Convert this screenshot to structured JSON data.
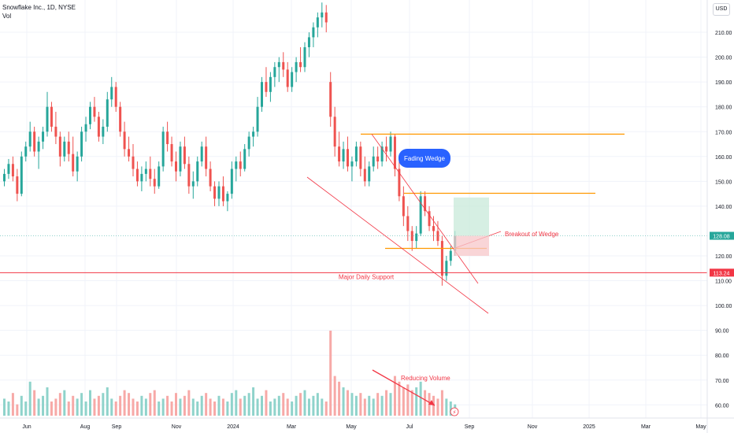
{
  "legend": {
    "symbol_line": "Snowflake Inc., 1D, NYSE",
    "volume_label": "Vol"
  },
  "currency": "USD",
  "chart_data": {
    "type": "candlestick",
    "title": "Snowflake Inc., 1D, NYSE",
    "y_axis": {
      "ticks": [
        60,
        70,
        80,
        90,
        100,
        110,
        120,
        140,
        150,
        160,
        170,
        180,
        190,
        200,
        210
      ],
      "tick_labels": [
        "60.00",
        "70.00",
        "80.00",
        "90.00",
        "100.00",
        "110.00",
        "120.00",
        "140.00",
        "150.00",
        "160.00",
        "170.00",
        "180.00",
        "190.00",
        "200.00",
        "210.00"
      ],
      "ylim": [
        57,
        221
      ]
    },
    "x_axis": {
      "ticks": [
        "Jun",
        "Aug",
        "Sep",
        "Nov",
        "2024",
        "Mar",
        "May",
        "Jul",
        "Sep",
        "Nov",
        "2025",
        "Mar",
        "May"
      ]
    },
    "last_price": {
      "label": "128.08",
      "value": 128.08,
      "color": "#26a69a"
    },
    "support": {
      "label": "113.24",
      "value": 113.24,
      "color": "#f23645"
    },
    "annotations": {
      "fading_wedge": "Fading Wedge",
      "breakout": "Breakout of Wedge",
      "support_text": "Major Daily Support",
      "reducing_volume": "Reducing Volume"
    },
    "levels": {
      "resistance_high": 169,
      "resistance_mid": 145.2,
      "breakout_low": 123,
      "target": 143.5
    },
    "colors": {
      "up": "#26a69a",
      "down": "#ef5350",
      "up_vol": "#8fd3cb",
      "down_vol": "#f7a9a7",
      "orange": "#ff9800",
      "red": "#f23645",
      "badge": "#2962ff"
    },
    "series": [
      {
        "name": "price",
        "points": [
          [
            0,
            150,
            155,
            148,
            153
          ],
          [
            1,
            153,
            159,
            151,
            157
          ],
          [
            2,
            157,
            160,
            150,
            152
          ],
          [
            3,
            152,
            155,
            142,
            145
          ],
          [
            4,
            145,
            162,
            144,
            160
          ],
          [
            5,
            160,
            166,
            158,
            164
          ],
          [
            6,
            164,
            174,
            162,
            170
          ],
          [
            7,
            170,
            172,
            160,
            162
          ],
          [
            8,
            162,
            168,
            155,
            166
          ],
          [
            9,
            166,
            172,
            163,
            170
          ],
          [
            10,
            170,
            186,
            168,
            180
          ],
          [
            11,
            180,
            182,
            170,
            172
          ],
          [
            12,
            172,
            178,
            165,
            168
          ],
          [
            13,
            168,
            170,
            156,
            160
          ],
          [
            14,
            160,
            168,
            158,
            166
          ],
          [
            15,
            166,
            170,
            158,
            161
          ],
          [
            16,
            161,
            168,
            152,
            154
          ],
          [
            17,
            154,
            162,
            150,
            160
          ],
          [
            18,
            160,
            172,
            158,
            170
          ],
          [
            19,
            170,
            176,
            166,
            173
          ],
          [
            20,
            173,
            182,
            171,
            180
          ],
          [
            21,
            180,
            184,
            174,
            176
          ],
          [
            22,
            176,
            178,
            166,
            168
          ],
          [
            23,
            168,
            175,
            165,
            172
          ],
          [
            24,
            172,
            186,
            170,
            183
          ],
          [
            25,
            183,
            192,
            180,
            188
          ],
          [
            26,
            188,
            190,
            178,
            180
          ],
          [
            27,
            180,
            182,
            168,
            170
          ],
          [
            28,
            170,
            174,
            160,
            163
          ],
          [
            29,
            163,
            168,
            158,
            160
          ],
          [
            30,
            160,
            165,
            152,
            155
          ],
          [
            31,
            155,
            158,
            148,
            150
          ],
          [
            32,
            150,
            156,
            146,
            153
          ],
          [
            33,
            153,
            158,
            150,
            155
          ],
          [
            34,
            155,
            160,
            148,
            151
          ],
          [
            35,
            151,
            155,
            145,
            148
          ],
          [
            36,
            148,
            158,
            147,
            156
          ],
          [
            37,
            156,
            172,
            154,
            170
          ],
          [
            38,
            170,
            174,
            162,
            165
          ],
          [
            39,
            165,
            168,
            156,
            158
          ],
          [
            40,
            158,
            162,
            150,
            154
          ],
          [
            41,
            154,
            166,
            152,
            164
          ],
          [
            42,
            164,
            168,
            155,
            157
          ],
          [
            43,
            157,
            160,
            145,
            148
          ],
          [
            44,
            148,
            154,
            143,
            150
          ],
          [
            45,
            150,
            160,
            148,
            158
          ],
          [
            46,
            158,
            166,
            156,
            164
          ],
          [
            47,
            164,
            168,
            152,
            155
          ],
          [
            48,
            155,
            158,
            146,
            148
          ],
          [
            49,
            148,
            150,
            140,
            143
          ],
          [
            50,
            143,
            150,
            140,
            148
          ],
          [
            51,
            148,
            152,
            140,
            142
          ],
          [
            52,
            142,
            146,
            138,
            145
          ],
          [
            53,
            145,
            158,
            143,
            155
          ],
          [
            54,
            155,
            160,
            150,
            158
          ],
          [
            55,
            158,
            162,
            152,
            155
          ],
          [
            56,
            155,
            165,
            154,
            163
          ],
          [
            57,
            163,
            170,
            160,
            168
          ],
          [
            58,
            168,
            172,
            164,
            170
          ],
          [
            59,
            170,
            184,
            168,
            180
          ],
          [
            60,
            180,
            192,
            178,
            190
          ],
          [
            61,
            190,
            196,
            184,
            186
          ],
          [
            62,
            186,
            194,
            182,
            192
          ],
          [
            63,
            192,
            198,
            188,
            196
          ],
          [
            64,
            196,
            200,
            190,
            198
          ],
          [
            65,
            198,
            202,
            192,
            195
          ],
          [
            66,
            195,
            198,
            186,
            188
          ],
          [
            67,
            188,
            196,
            186,
            194
          ],
          [
            68,
            194,
            200,
            190,
            198
          ],
          [
            69,
            198,
            204,
            194,
            196
          ],
          [
            70,
            196,
            206,
            194,
            204
          ],
          [
            71,
            204,
            210,
            200,
            208
          ],
          [
            72,
            208,
            214,
            204,
            212
          ],
          [
            73,
            212,
            218,
            208,
            216
          ],
          [
            74,
            216,
            222,
            212,
            218
          ],
          [
            75,
            218,
            221,
            210,
            214
          ],
          [
            76,
            190,
            194,
            172,
            176
          ],
          [
            77,
            176,
            180,
            160,
            164
          ],
          [
            78,
            164,
            170,
            156,
            158
          ],
          [
            79,
            158,
            166,
            155,
            163
          ],
          [
            80,
            163,
            168,
            154,
            156
          ],
          [
            81,
            156,
            160,
            150,
            158
          ],
          [
            82,
            158,
            166,
            156,
            164
          ],
          [
            83,
            164,
            166,
            152,
            155
          ],
          [
            84,
            155,
            160,
            148,
            150
          ],
          [
            85,
            150,
            158,
            148,
            156
          ],
          [
            86,
            156,
            164,
            154,
            160
          ],
          [
            87,
            160,
            164,
            155,
            158
          ],
          [
            88,
            158,
            166,
            156,
            164
          ],
          [
            89,
            164,
            168,
            158,
            162
          ],
          [
            90,
            162,
            170,
            160,
            168
          ],
          [
            91,
            168,
            169,
            152,
            155
          ],
          [
            92,
            155,
            158,
            142,
            144
          ],
          [
            93,
            144,
            148,
            132,
            136
          ],
          [
            94,
            136,
            140,
            126,
            130
          ],
          [
            95,
            130,
            132,
            122,
            126
          ],
          [
            96,
            126,
            132,
            123,
            129
          ],
          [
            97,
            129,
            146,
            128,
            144
          ],
          [
            98,
            144,
            146,
            136,
            138
          ],
          [
            99,
            138,
            140,
            130,
            132
          ],
          [
            100,
            132,
            136,
            126,
            130
          ],
          [
            101,
            130,
            134,
            124,
            126
          ],
          [
            102,
            126,
            128,
            108,
            112
          ],
          [
            103,
            112,
            120,
            110,
            118
          ],
          [
            104,
            118,
            124,
            116,
            122
          ],
          [
            105,
            122,
            130,
            120,
            128
          ]
        ]
      },
      {
        "name": "volume",
        "values": [
          6,
          5,
          8,
          4,
          7,
          5,
          12,
          9,
          6,
          7,
          10,
          5,
          6,
          8,
          9,
          5,
          7,
          6,
          8,
          5,
          9,
          6,
          7,
          8,
          10,
          6,
          5,
          7,
          9,
          8,
          6,
          5,
          7,
          6,
          8,
          9,
          5,
          6,
          7,
          5,
          8,
          6,
          7,
          9,
          6,
          5,
          7,
          8,
          6,
          5,
          7,
          6,
          5,
          8,
          9,
          6,
          7,
          8,
          10,
          6,
          7,
          9,
          5,
          6,
          7,
          8,
          6,
          5,
          7,
          8,
          9,
          6,
          7,
          8,
          6,
          5,
          30,
          14,
          12,
          10,
          9,
          8,
          7,
          8,
          6,
          7,
          6,
          8,
          7,
          9,
          8,
          14,
          12,
          10,
          11,
          9,
          10,
          12,
          9,
          8,
          7,
          6,
          9,
          6,
          5,
          4
        ]
      }
    ]
  }
}
